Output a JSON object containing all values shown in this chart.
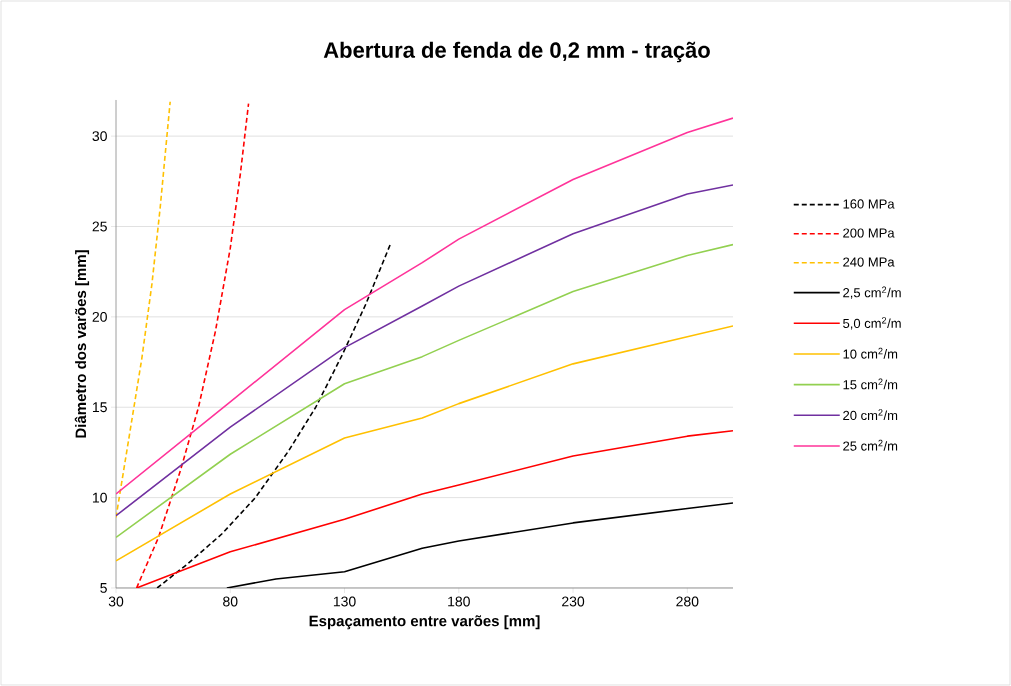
{
  "chart_data": {
    "type": "line",
    "title": "Abertura de fenda de 0,2 mm - tração",
    "xlabel": "Espaçamento entre varões [mm]",
    "ylabel": "Diâmetro dos varões [mm]",
    "xlim": [
      30,
      300
    ],
    "ylim": [
      5,
      32
    ],
    "xticks": [
      30,
      80,
      130,
      180,
      230,
      280
    ],
    "yticks": [
      5,
      10,
      15,
      20,
      25,
      30
    ],
    "grid": "y",
    "legend": "right",
    "marker": "none",
    "series": [
      {
        "name": "160 MPa",
        "color": "#000000",
        "line_style": "dashed",
        "x": [
          48,
          61,
          76.4,
          91,
          105.6,
          117.4,
          129,
          139.3,
          150
        ],
        "values": [
          5,
          6.3,
          8.0,
          10.0,
          12.6,
          15.0,
          17.9,
          20.7,
          24.0
        ]
      },
      {
        "name": "200 MPa",
        "color": "#ff0000",
        "line_style": "dashed",
        "x": [
          39,
          48.6,
          58.2,
          66.1,
          73.5,
          80,
          84.4,
          88
        ],
        "values": [
          5,
          7.8,
          11.5,
          15.0,
          19.2,
          23.8,
          27.9,
          31.8
        ]
      },
      {
        "name": "240 MPa",
        "color": "#ffc000",
        "line_style": "dashed",
        "x": [
          30,
          35.4,
          41.3,
          45.7,
          49.3,
          52.2,
          53.7
        ],
        "values": [
          8.9,
          13.1,
          17.7,
          21.8,
          26.0,
          29.9,
          31.9
        ]
      },
      {
        "name": "2,5 cm$^{2}$/m",
        "color": "#000000",
        "line_style": "solid",
        "x": [
          78.5,
          100,
          130,
          164,
          180,
          230,
          280,
          300
        ],
        "values": [
          5,
          5.5,
          5.9,
          7.2,
          7.6,
          8.6,
          9.4,
          9.7
        ]
      },
      {
        "name": "5,0 cm$^{2}$/m",
        "color": "#ff0000",
        "line_style": "solid",
        "x": [
          39,
          80,
          130,
          164,
          180,
          230,
          280,
          300
        ],
        "values": [
          5,
          7.0,
          8.8,
          10.2,
          10.7,
          12.3,
          13.4,
          13.7
        ]
      },
      {
        "name": "10 cm$^{2}$/m",
        "color": "#ffc000",
        "line_style": "solid",
        "x": [
          30,
          80,
          130,
          164,
          180,
          230,
          280,
          300
        ],
        "values": [
          6.5,
          10.2,
          13.3,
          14.4,
          15.2,
          17.4,
          18.9,
          19.5
        ]
      },
      {
        "name": "15 cm$^{2}$/m",
        "color": "#92d050",
        "line_style": "solid",
        "x": [
          30,
          80,
          130,
          164,
          180,
          230,
          280,
          300
        ],
        "values": [
          7.8,
          12.4,
          16.3,
          17.8,
          18.7,
          21.4,
          23.4,
          24.0
        ]
      },
      {
        "name": "20 cm$^{2}$/m",
        "color": "#7030a0",
        "line_style": "solid",
        "x": [
          30,
          80,
          130,
          164,
          180,
          230,
          280,
          300
        ],
        "values": [
          9.0,
          13.9,
          18.3,
          20.6,
          21.7,
          24.6,
          26.8,
          27.3
        ]
      },
      {
        "name": "25 cm$^{2}$/m",
        "color": "#ff3399",
        "line_style": "solid",
        "x": [
          30,
          80,
          130,
          164,
          180,
          230,
          280,
          300
        ],
        "values": [
          10.2,
          15.3,
          20.4,
          23.0,
          24.3,
          27.6,
          30.2,
          31.0
        ]
      }
    ]
  }
}
